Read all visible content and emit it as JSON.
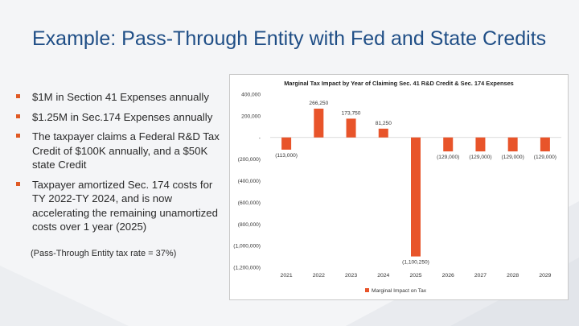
{
  "slide": {
    "title": "Example: Pass-Through Entity with Fed and State Credits",
    "bullets": [
      "$1M in Section 41 Expenses annually",
      "$1.25M in Sec.174 Expenses annually",
      "The taxpayer claims a Federal R&D Tax Credit of $100K annually, and a $50K state Credit",
      "Taxpayer amortized Sec. 174 costs for TY 2022-TY 2024, and is now accelerating the remaining unamortized costs over 1 year (2025)"
    ],
    "note": "(Pass-Through Entity tax rate = 37%)"
  },
  "colors": {
    "title": "#1f4e86",
    "bar": "#e8542a",
    "bullet": "#e05a25"
  },
  "chart_data": {
    "type": "bar",
    "title": "Marginal Tax Impact by Year of Claiming Sec. 41 R&D Credit & Sec. 174 Expenses",
    "categories": [
      "2021",
      "2022",
      "2023",
      "2024",
      "2025",
      "2026",
      "2027",
      "2028",
      "2029"
    ],
    "series": [
      {
        "name": "Marginal Impact on Tax",
        "values": [
          -113000,
          266250,
          173750,
          81250,
          -1100250,
          -129000,
          -129000,
          -129000,
          -129000
        ],
        "labels": [
          "(113,000)",
          "266,250",
          "173,750",
          "81,250",
          "(1,100,250)",
          "(129,000)",
          "(129,000)",
          "(129,000)",
          "(129,000)"
        ]
      }
    ],
    "yticks": [
      400000,
      200000,
      0,
      -200000,
      -400000,
      -600000,
      -800000,
      -1000000,
      -1200000
    ],
    "ytick_labels": [
      "400,000",
      "200,000",
      "-",
      "(200,000)",
      "(400,000)",
      "(600,000)",
      "(800,000)",
      "(1,000,000)",
      "(1,200,000)"
    ],
    "ylim": [
      -1200000,
      400000
    ],
    "grid": false,
    "legend": "bottom-center"
  }
}
